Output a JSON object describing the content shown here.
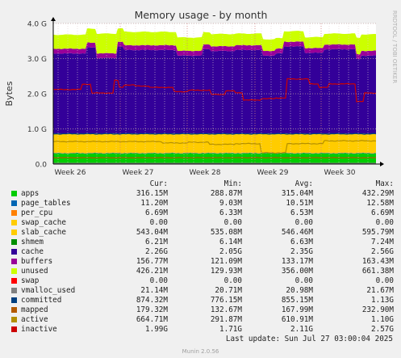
{
  "chart_data": {
    "type": "area",
    "title": "Memory usage - by month",
    "ylabel": "Bytes",
    "side_label": "RRDTOOL / TOBI OETIKER",
    "y_ticks": [
      "0.0",
      "1.0 G",
      "2.0 G",
      "3.0 G",
      "4.0 G"
    ],
    "ylim": [
      0,
      4.0
    ],
    "x_ticks": [
      "Week 26",
      "Week 27",
      "Week 28",
      "Week 29",
      "Week 30"
    ],
    "grid": true,
    "legend_columns": [
      "Cur:",
      "Min:",
      "Avg:",
      "Max:"
    ],
    "series": [
      {
        "name": "apps",
        "color": "#00cc00",
        "cur": "316.15M",
        "min": "288.87M",
        "avg": "315.04M",
        "max": "432.29M"
      },
      {
        "name": "page_tables",
        "color": "#0066b3",
        "cur": "11.20M",
        "min": "9.03M",
        "avg": "10.51M",
        "max": "12.58M"
      },
      {
        "name": "per_cpu",
        "color": "#ff8000",
        "cur": "6.69M",
        "min": "6.33M",
        "avg": "6.53M",
        "max": "6.69M"
      },
      {
        "name": "swap_cache",
        "color": "#ffcc00",
        "cur": "0.00",
        "min": "0.00",
        "avg": "0.00",
        "max": "0.00"
      },
      {
        "name": "slab_cache",
        "color": "#ffcc00",
        "cur": "543.04M",
        "min": "535.08M",
        "avg": "546.46M",
        "max": "595.79M"
      },
      {
        "name": "shmem",
        "color": "#008f00",
        "cur": "6.21M",
        "min": "6.14M",
        "avg": "6.63M",
        "max": "7.24M"
      },
      {
        "name": "cache",
        "color": "#330099",
        "cur": "2.26G",
        "min": "2.05G",
        "avg": "2.35G",
        "max": "2.56G"
      },
      {
        "name": "buffers",
        "color": "#990099",
        "cur": "156.77M",
        "min": "121.09M",
        "avg": "133.17M",
        "max": "163.43M"
      },
      {
        "name": "unused",
        "color": "#ccff00",
        "cur": "426.21M",
        "min": "129.93M",
        "avg": "356.00M",
        "max": "661.38M"
      },
      {
        "name": "swap",
        "color": "#ff0000",
        "cur": "0.00",
        "min": "0.00",
        "avg": "0.00",
        "max": "0.00"
      },
      {
        "name": "vmalloc_used",
        "color": "#808080",
        "cur": "21.14M",
        "min": "20.71M",
        "avg": "20.98M",
        "max": "21.67M"
      },
      {
        "name": "committed",
        "color": "#004080",
        "cur": "874.32M",
        "min": "776.15M",
        "avg": "855.15M",
        "max": "1.13G"
      },
      {
        "name": "mapped",
        "color": "#b35a00",
        "cur": "179.32M",
        "min": "132.67M",
        "avg": "167.99M",
        "max": "232.90M"
      },
      {
        "name": "active",
        "color": "#b38f00",
        "cur": "664.71M",
        "min": "291.87M",
        "avg": "610.91M",
        "max": "1.10G"
      },
      {
        "name": "inactive",
        "color": "#cc0000",
        "cur": "1.99G",
        "min": "1.71G",
        "avg": "2.11G",
        "max": "2.57G"
      }
    ]
  },
  "footer": {
    "last_update": "Last update: Sun Jul 27 03:00:04 2025",
    "version": "Munin 2.0.56"
  }
}
